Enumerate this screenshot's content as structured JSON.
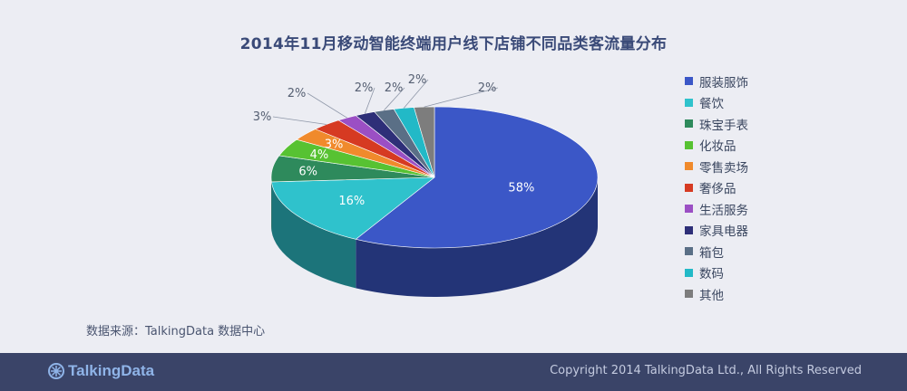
{
  "title": "2014年11月移动智能终端用户线下店铺不同品类客流量分布",
  "source": "数据来源：TalkingData 数据中心",
  "footer": {
    "brand": "TalkingData",
    "copyright": "Copyright 2014 TalkingData Ltd., All Rights Reserved"
  },
  "chart_data": {
    "type": "pie",
    "style": "3d-tilted",
    "legend_position": "right",
    "slices": [
      {
        "label": "服装服饰",
        "value": 58,
        "display": "58%",
        "color": "#3b57c7"
      },
      {
        "label": "餐饮",
        "value": 16,
        "display": "16%",
        "color": "#2fc2cc"
      },
      {
        "label": "珠宝手表",
        "value": 6,
        "display": "6%",
        "color": "#2e8a5c"
      },
      {
        "label": "化妆品",
        "value": 4,
        "display": "4%",
        "color": "#57c232"
      },
      {
        "label": "零售卖场",
        "value": 3,
        "display": "3%",
        "color": "#f08a2c"
      },
      {
        "label": "奢侈品",
        "value": 3,
        "display": "3%",
        "color": "#d63a22"
      },
      {
        "label": "生活服务",
        "value": 2,
        "display": "2%",
        "color": "#9b4fc4"
      },
      {
        "label": "家具电器",
        "value": 2,
        "display": "2%",
        "color": "#2e2f78"
      },
      {
        "label": "箱包",
        "value": 2,
        "display": "2%",
        "color": "#5a6f86"
      },
      {
        "label": "数码",
        "value": 2,
        "display": "2%",
        "color": "#22b9c7"
      },
      {
        "label": "其他",
        "value": 2,
        "display": "2%",
        "color": "#7d7d7d"
      }
    ]
  }
}
